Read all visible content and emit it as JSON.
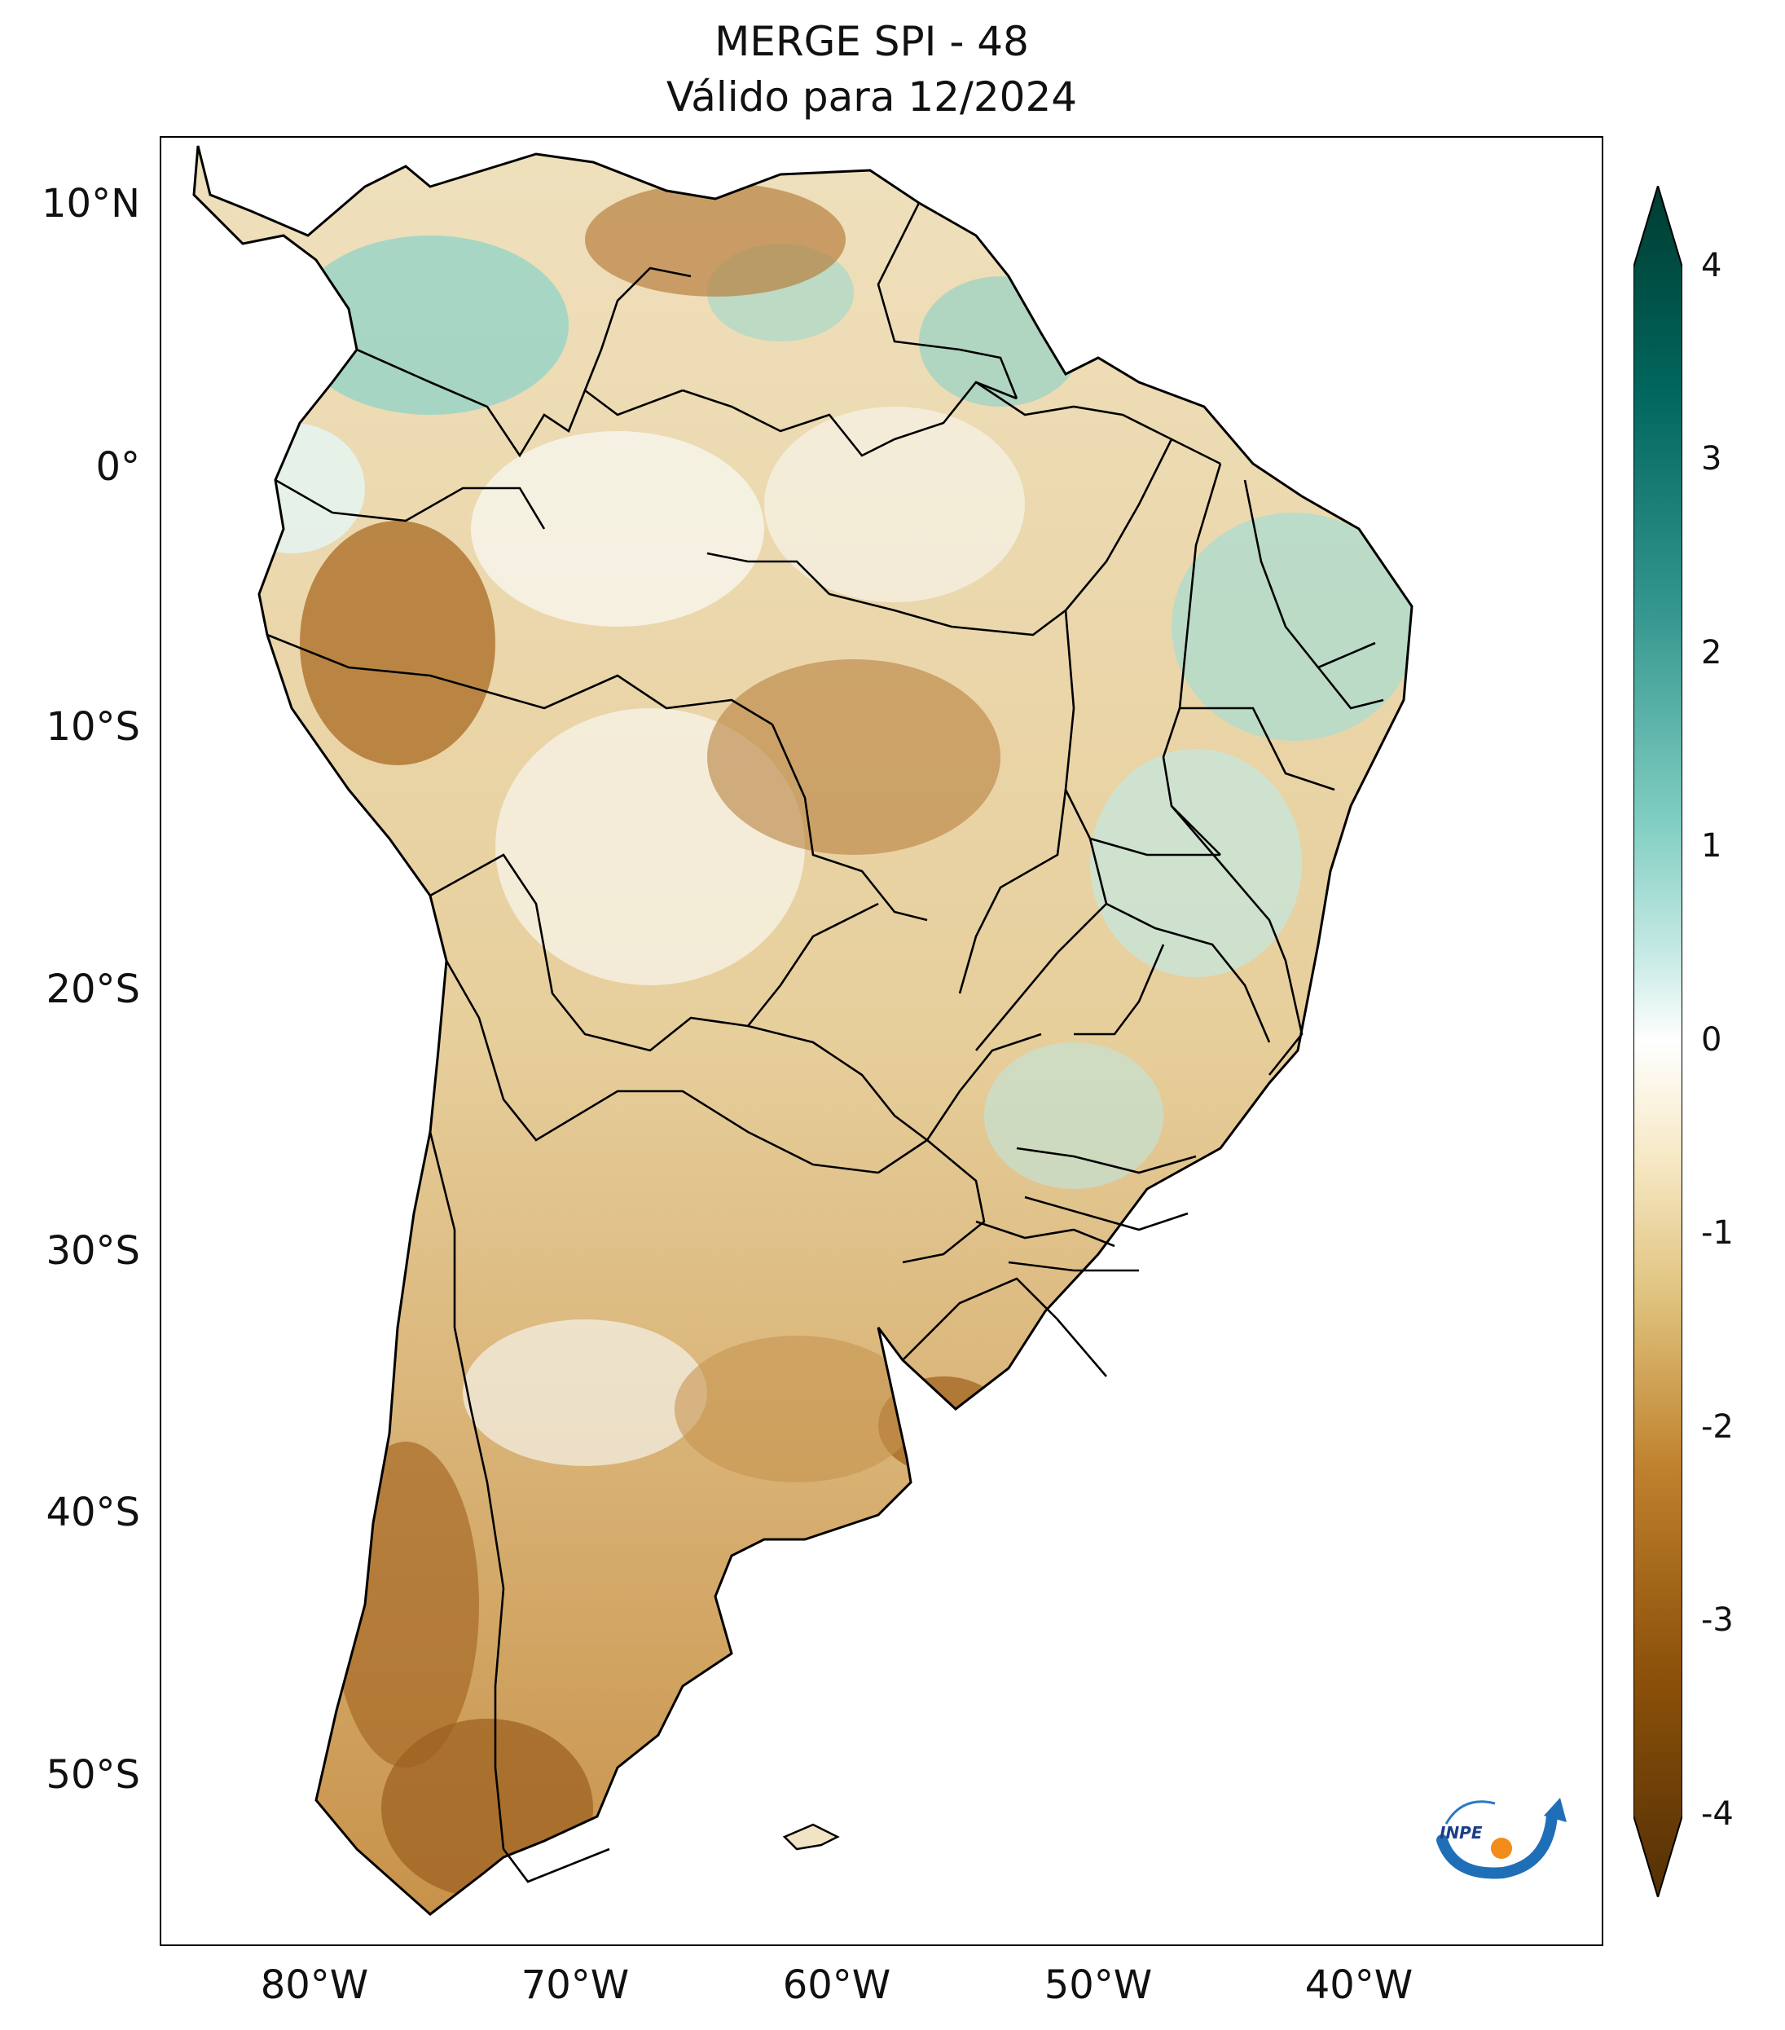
{
  "title_line1": "MERGE   SPI - 48",
  "title_line2": "Válido para 12/2024",
  "map": {
    "latitude_labels": [
      "10°N",
      "0°",
      "10°S",
      "20°S",
      "30°S",
      "40°S",
      "50°S"
    ],
    "longitude_labels": [
      "80°W",
      "70°W",
      "60°W",
      "50°W",
      "40°W"
    ],
    "extent": {
      "lon_min": -85,
      "lon_max": -30,
      "lat_min": -56,
      "lat_max": 13
    }
  },
  "colorbar": {
    "ticks": [
      "4",
      "3",
      "2",
      "1",
      "0",
      "-1",
      "-2",
      "-3",
      "-4"
    ],
    "min": -4,
    "max": 4,
    "colors": {
      "dry_extreme": "#543005",
      "dry": "#8c510a",
      "dry_mid": "#bf812d",
      "dry_light": "#dfc27d",
      "neutral_light": "#f6e8c3",
      "neutral": "#ffffff",
      "wet_light": "#c7eae5",
      "wet_mid": "#80cdc1",
      "wet": "#35978f",
      "wet_strong": "#01665e",
      "wet_extreme": "#003c30"
    }
  },
  "logo": {
    "text": "INPE",
    "icon": "inpe-logo-icon"
  }
}
